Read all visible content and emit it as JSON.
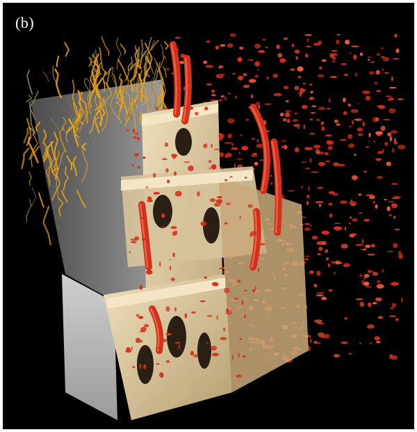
{
  "figure": {
    "panel_label": "(b)"
  },
  "colors": {
    "background": "#000000",
    "bone_surface": "#d8c49a",
    "bone_shade": "#a8916a",
    "vessel_red": "#d4301c",
    "vessel_red_light": "#f05a3a",
    "vessel_yellow": "#e8a318",
    "translucent_gray": "#c9c9c9"
  }
}
